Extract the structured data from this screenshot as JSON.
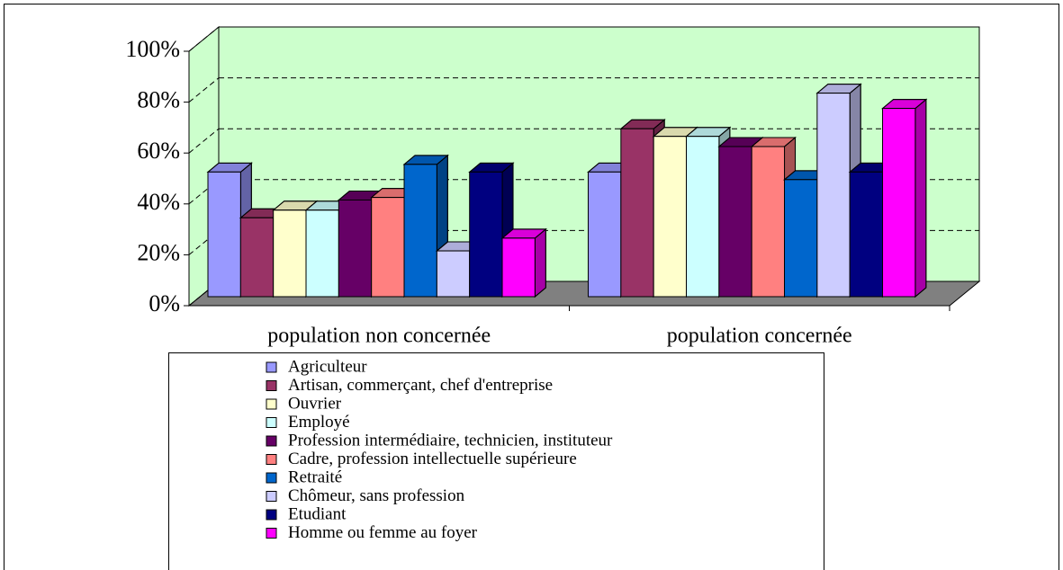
{
  "chart_data": {
    "type": "bar3d",
    "categories": [
      "population non concernée",
      "population concernée"
    ],
    "series": [
      {
        "name": "Agriculteur",
        "color": "#9999ff",
        "values": [
          49,
          49
        ]
      },
      {
        "name": "Artisan, commerçant, chef d'entreprise",
        "color": "#993366",
        "values": [
          31,
          66
        ]
      },
      {
        "name": "Ouvrier",
        "color": "#ffffcc",
        "values": [
          34,
          63
        ]
      },
      {
        "name": "Employé",
        "color": "#ccffff",
        "values": [
          34,
          63
        ]
      },
      {
        "name": "Profession intermédiaire, technicien, instituteur",
        "color": "#660066",
        "values": [
          38,
          59
        ]
      },
      {
        "name": "Cadre, profession intellectuelle supérieure",
        "color": "#ff8080",
        "values": [
          39,
          59
        ]
      },
      {
        "name": "Retraité",
        "color": "#0066cc",
        "values": [
          52,
          46
        ]
      },
      {
        "name": "Chômeur, sans profession",
        "color": "#ccccff",
        "values": [
          18,
          80
        ]
      },
      {
        "name": "Etudiant",
        "color": "#000080",
        "values": [
          49,
          49
        ]
      },
      {
        "name": "Homme ou femme au foyer",
        "color": "#ff00ff",
        "values": [
          23,
          74
        ]
      }
    ],
    "ylim": [
      0,
      100
    ],
    "yticks": [
      {
        "value": 0,
        "label": "0%"
      },
      {
        "value": 20,
        "label": "20%"
      },
      {
        "value": 40,
        "label": "40%"
      },
      {
        "value": 60,
        "label": "60%"
      },
      {
        "value": 80,
        "label": "80%"
      },
      {
        "value": 100,
        "label": "100%"
      }
    ],
    "grid": true
  }
}
